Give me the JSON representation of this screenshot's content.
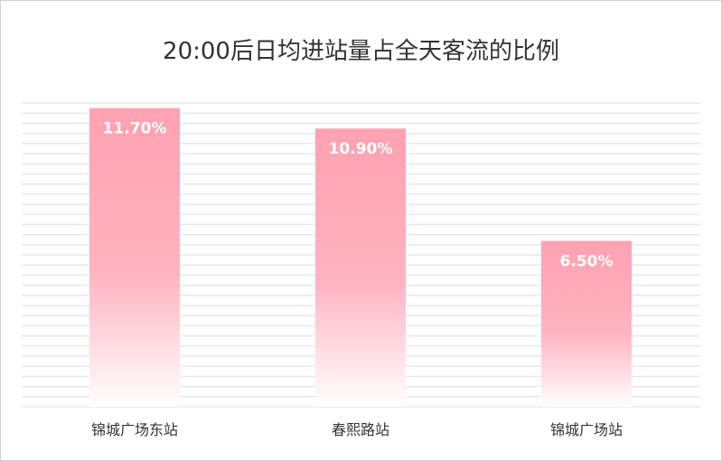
{
  "chart_data": {
    "type": "bar",
    "title": "20:00后日均进站量占全天客流的比例",
    "categories": [
      "锦城广场东站",
      "春熙路站",
      "锦城广场站"
    ],
    "values": [
      11.7,
      10.9,
      6.5
    ],
    "value_labels": [
      "11.70%",
      "10.90%",
      "6.50%"
    ],
    "ylim": [
      0,
      11.9
    ],
    "grid": true,
    "bar_color": "#ffa1b1",
    "bar_fade_color": "#ffffff",
    "grid_color": "#e8e8e8"
  }
}
